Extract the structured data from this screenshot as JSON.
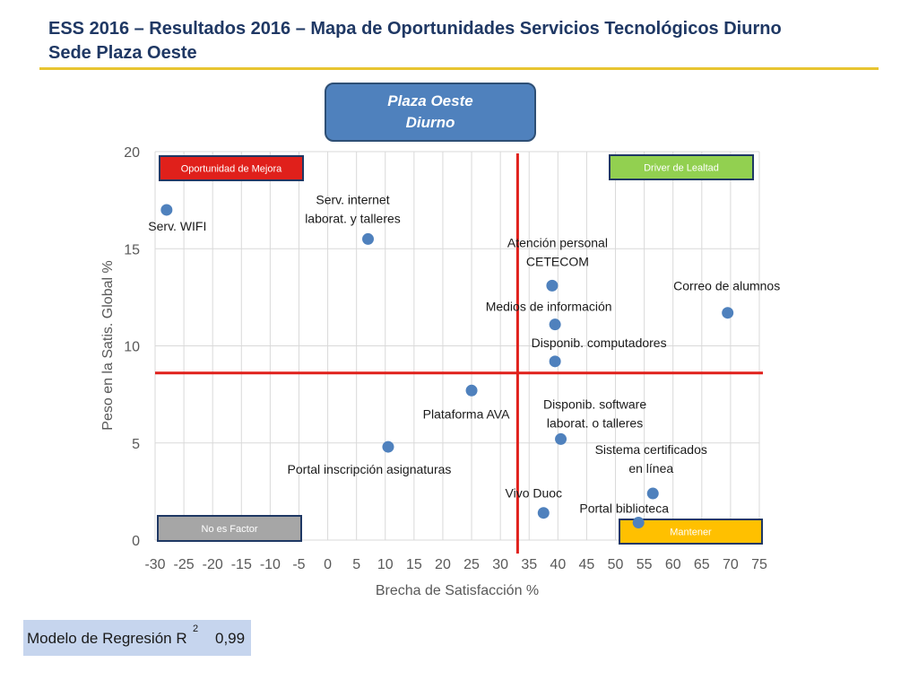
{
  "header": {
    "title_line1": "ESS 2016 – Resultados 2016 – Mapa de Oportunidades Servicios Tecnológicos Diurno",
    "title_line2": "Sede Plaza Oeste"
  },
  "badge": {
    "line1": "Plaza Oeste",
    "line2": "Diurno"
  },
  "regression": {
    "label": "Modelo de Regresión R",
    "superscript": "2",
    "value": "0,99"
  },
  "colors": {
    "point": "#4f81bd",
    "threshold": "#e0201b",
    "grid": "#d9d9d9"
  },
  "chart_data": {
    "type": "scatter",
    "xlabel": "Brecha de Satisfacción %",
    "ylabel": "Peso en la Satis. Global %",
    "xlim": [
      -30,
      75
    ],
    "ylim": [
      0,
      20
    ],
    "xticks": [
      -30,
      -25,
      -20,
      -15,
      -10,
      -5,
      0,
      5,
      10,
      15,
      20,
      25,
      30,
      35,
      40,
      45,
      50,
      55,
      60,
      65,
      70,
      75
    ],
    "yticks": [
      0,
      5,
      10,
      15,
      20
    ],
    "grid": true,
    "threshold_x": 33,
    "threshold_y": 8.6,
    "quadrants": [
      {
        "label": "Oportunidad de Mejora",
        "position": "top-left",
        "fill": "#e0201b",
        "text_color": "#ffffff"
      },
      {
        "label": "Driver de Lealtad",
        "position": "top-right",
        "fill": "#92d050",
        "text_color": "#ffffff"
      },
      {
        "label": "No es Factor",
        "position": "bottom-left",
        "fill": "#a6a6a6",
        "text_color": "#ffffff"
      },
      {
        "label": "Mantener",
        "position": "bottom-right",
        "fill": "#ffc000",
        "text_color": "#ffffff"
      }
    ],
    "points": [
      {
        "label": [
          "Serv. WIFI"
        ],
        "x": -28.0,
        "y": 17.0
      },
      {
        "label": [
          "Serv. internet",
          "laborat. y talleres"
        ],
        "x": 7.0,
        "y": 15.5
      },
      {
        "label": [
          "Atención personal",
          "CETECOM"
        ],
        "x": 39.0,
        "y": 13.1
      },
      {
        "label": [
          "Correo de alumnos"
        ],
        "x": 69.5,
        "y": 11.7
      },
      {
        "label": [
          "Medios de información"
        ],
        "x": 39.5,
        "y": 11.1
      },
      {
        "label": [
          "Disponib. computadores"
        ],
        "x": 39.5,
        "y": 9.2
      },
      {
        "label": [
          "Plataforma AVA"
        ],
        "x": 25.0,
        "y": 7.7
      },
      {
        "label": [
          "Disponib. software",
          "laborat. o talleres"
        ],
        "x": 40.5,
        "y": 5.2
      },
      {
        "label": [
          "Portal inscripción asignaturas"
        ],
        "x": 10.5,
        "y": 4.8
      },
      {
        "label": [
          "Sistema certificados",
          "en línea"
        ],
        "x": 56.5,
        "y": 2.4
      },
      {
        "label": [
          "Vivo Duoc"
        ],
        "x": 37.5,
        "y": 1.4
      },
      {
        "label": [
          "Portal biblioteca"
        ],
        "x": 54.0,
        "y": 0.9
      }
    ]
  }
}
